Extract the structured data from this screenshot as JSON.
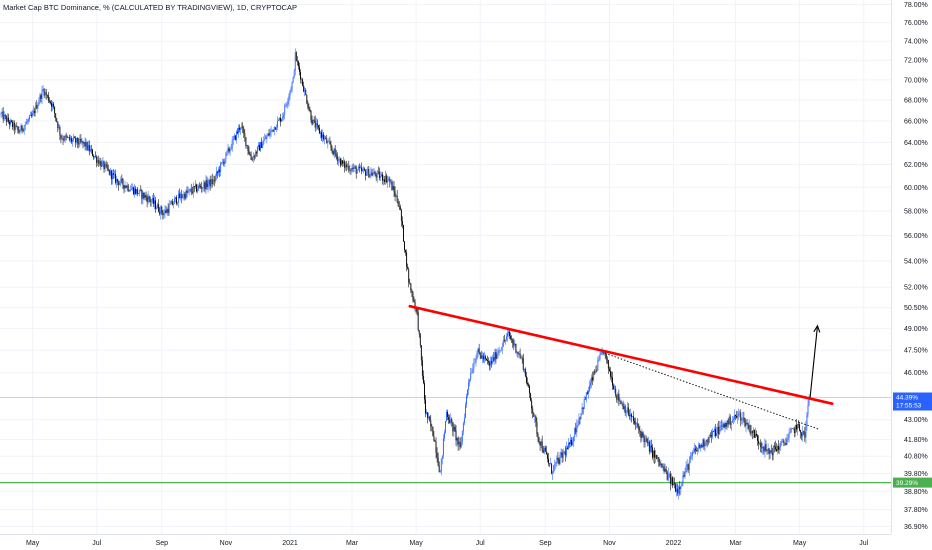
{
  "chart_data": {
    "type": "candlestick",
    "title": "Market Cap BTC Dominance, % (CALCULATED BY TRADINGVIEW), 1D, CRYPTOCAP",
    "y_axis": {
      "side": "right",
      "scale": "log",
      "ylim": [
        36.5,
        78.5
      ],
      "tick_labels": [
        "78.00%",
        "76.00%",
        "74.00%",
        "72.00%",
        "70.00%",
        "68.00%",
        "66.00%",
        "64.00%",
        "62.00%",
        "60.00%",
        "58.00%",
        "56.00%",
        "54.00%",
        "52.00%",
        "50.50%",
        "49.00%",
        "47.50%",
        "46.00%",
        "43.00%",
        "41.80%",
        "40.80%",
        "39.80%",
        "38.80%",
        "37.80%",
        "36.90%"
      ],
      "tick_values": [
        78.0,
        76.0,
        74.0,
        72.0,
        70.0,
        68.0,
        66.0,
        64.0,
        62.0,
        60.0,
        58.0,
        56.0,
        54.0,
        52.0,
        50.5,
        49.0,
        47.5,
        46.0,
        43.0,
        41.8,
        40.8,
        39.8,
        38.8,
        37.8,
        36.9
      ]
    },
    "x_axis": {
      "tick_labels": [
        "May",
        "Jul",
        "Sep",
        "Nov",
        "2021",
        "Mar",
        "May",
        "Jul",
        "Sep",
        "Nov",
        "2022",
        "Mar",
        "May",
        "Jul"
      ],
      "tick_dates": [
        "2020-05-01",
        "2020-07-01",
        "2020-09-01",
        "2020-11-01",
        "2021-01-01",
        "2021-03-01",
        "2021-05-01",
        "2021-07-01",
        "2021-09-01",
        "2021-11-01",
        "2022-01-01",
        "2022-03-01",
        "2022-05-01",
        "2022-07-01"
      ],
      "range": [
        "2020-03-31",
        "2022-07-27"
      ]
    },
    "series": [
      {
        "style": "candles",
        "up_color": "#2962ff",
        "down_color": "#000000",
        "key_points": [
          [
            "2020-04-01",
            66.6
          ],
          [
            "2020-04-18",
            65.0
          ],
          [
            "2020-05-01",
            66.5
          ],
          [
            "2020-05-11",
            69.0
          ],
          [
            "2020-05-20",
            67.5
          ],
          [
            "2020-05-28",
            64.5
          ],
          [
            "2020-06-20",
            63.8
          ],
          [
            "2020-07-01",
            62.5
          ],
          [
            "2020-07-20",
            60.6
          ],
          [
            "2020-08-05",
            59.8
          ],
          [
            "2020-08-20",
            59.0
          ],
          [
            "2020-09-03",
            57.8
          ],
          [
            "2020-09-15",
            59.0
          ],
          [
            "2020-10-01",
            59.8
          ],
          [
            "2020-10-20",
            60.5
          ],
          [
            "2020-11-05",
            63.5
          ],
          [
            "2020-11-15",
            65.6
          ],
          [
            "2020-11-25",
            62.5
          ],
          [
            "2020-12-10",
            64.5
          ],
          [
            "2020-12-25",
            66.5
          ],
          [
            "2021-01-04",
            70.0
          ],
          [
            "2021-01-06",
            72.5
          ],
          [
            "2021-01-12",
            70.0
          ],
          [
            "2021-01-22",
            66.0
          ],
          [
            "2021-02-05",
            64.0
          ],
          [
            "2021-02-20",
            62.0
          ],
          [
            "2021-03-05",
            61.5
          ],
          [
            "2021-03-20",
            61.2
          ],
          [
            "2021-04-05",
            60.7
          ],
          [
            "2021-04-15",
            58.5
          ],
          [
            "2021-04-24",
            52.5
          ],
          [
            "2021-05-02",
            50.0
          ],
          [
            "2021-05-10",
            43.5
          ],
          [
            "2021-05-18",
            42.0
          ],
          [
            "2021-05-24",
            39.8
          ],
          [
            "2021-05-30",
            43.5
          ],
          [
            "2021-06-05",
            42.5
          ],
          [
            "2021-06-12",
            41.2
          ],
          [
            "2021-06-20",
            45.5
          ],
          [
            "2021-06-28",
            47.4
          ],
          [
            "2021-07-10",
            46.5
          ],
          [
            "2021-07-28",
            48.6
          ],
          [
            "2021-08-10",
            46.8
          ],
          [
            "2021-08-25",
            42.0
          ],
          [
            "2021-09-07",
            40.0
          ],
          [
            "2021-09-25",
            41.5
          ],
          [
            "2021-10-10",
            44.5
          ],
          [
            "2021-10-26",
            47.5
          ],
          [
            "2021-11-08",
            44.5
          ],
          [
            "2021-11-25",
            42.8
          ],
          [
            "2021-12-10",
            41.2
          ],
          [
            "2021-12-28",
            39.5
          ],
          [
            "2022-01-05",
            38.9
          ],
          [
            "2022-01-20",
            41.0
          ],
          [
            "2022-02-05",
            42.0
          ],
          [
            "2022-02-25",
            43.0
          ],
          [
            "2022-03-05",
            43.3
          ],
          [
            "2022-03-20",
            42.0
          ],
          [
            "2022-04-01",
            41.0
          ],
          [
            "2022-04-15",
            41.5
          ],
          [
            "2022-04-28",
            42.6
          ],
          [
            "2022-05-06",
            42.0
          ],
          [
            "2022-05-10",
            44.39
          ]
        ]
      }
    ],
    "current_price": {
      "label": "44.39%",
      "value": 44.39,
      "countdown": "17:55:53",
      "color": "#2962ff"
    },
    "horizontal_level": {
      "label": "39.29%",
      "value": 39.29,
      "color": "#4caf50"
    },
    "annotations": {
      "resistance_line": {
        "color": "#ff0000",
        "from": [
          "2021-04-25",
          50.6
        ],
        "to": [
          "2022-06-01",
          44.0
        ]
      },
      "dotted_trend_line": {
        "color": "#000000",
        "from": [
          "2021-10-28",
          47.3
        ],
        "to": [
          "2022-05-20",
          42.4
        ]
      },
      "arrow": {
        "color": "#000000",
        "from": [
          "2022-05-11",
          44.4
        ],
        "to": [
          "2022-05-18",
          49.2
        ]
      }
    }
  }
}
